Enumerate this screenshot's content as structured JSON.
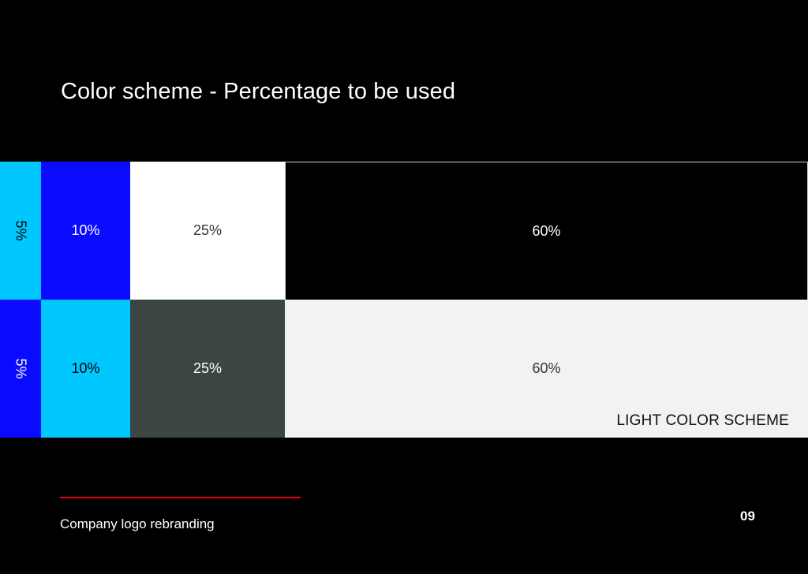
{
  "title": "Color scheme - Percentage to be used",
  "colors": {
    "background": "#000000",
    "cyan": "#00c8ff",
    "blue": "#0a0aff",
    "white": "#ffffff",
    "black": "#000000",
    "dark_gray": "#3a4544",
    "light_gray": "#f2f2f2",
    "accent_red": "#e30613"
  },
  "dark_scheme": {
    "blocks": [
      {
        "label": "5%",
        "color": "#00c8ff",
        "text_color": "#000000"
      },
      {
        "label": "10%",
        "color": "#0a0aff",
        "text_color": "#ffffff"
      },
      {
        "label": "25%",
        "color": "#ffffff",
        "text_color": "#333333"
      },
      {
        "label": "60%",
        "color": "#000000",
        "text_color": "#ffffff"
      }
    ]
  },
  "light_scheme": {
    "caption": "LIGHT COLOR SCHEME",
    "blocks": [
      {
        "label": "5%",
        "color": "#0a0aff",
        "text_color": "#ffffff"
      },
      {
        "label": "10%",
        "color": "#00c8ff",
        "text_color": "#000000"
      },
      {
        "label": "25%",
        "color": "#3a4544",
        "text_color": "#ffffff"
      },
      {
        "label": "60%",
        "color": "#f2f2f2",
        "text_color": "#333333"
      }
    ]
  },
  "footer": {
    "text": "Company logo rebranding",
    "page_number": "09"
  }
}
